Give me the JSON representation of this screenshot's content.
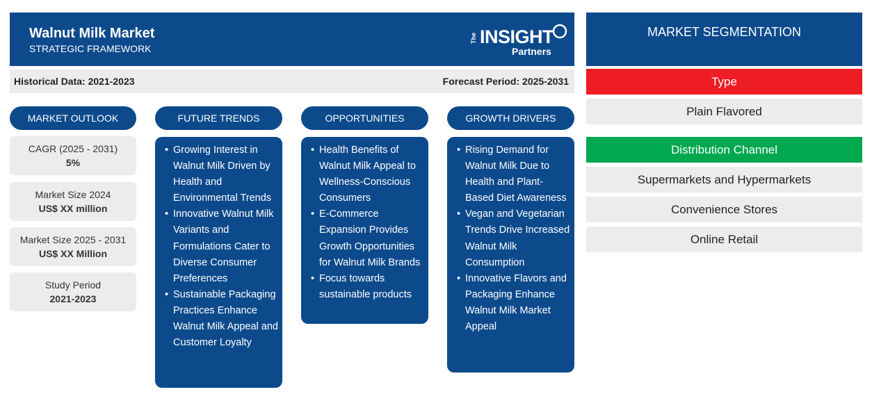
{
  "header": {
    "title": "Walnut Milk Market",
    "subtitle": "STRATEGIC FRAMEWORK",
    "logo": {
      "the": "The",
      "brand": "INSIGHT",
      "sub": "Partners"
    }
  },
  "periods": {
    "historical": "Historical Data: 2021-2023",
    "forecast": "Forecast Period: 2025-2031"
  },
  "market_outlook": {
    "heading": "MARKET OUTLOOK",
    "stats": [
      {
        "label": "CAGR (2025 - 2031)",
        "value": "5%"
      },
      {
        "label": "Market Size 2024",
        "value": "US$ XX million"
      },
      {
        "label": "Market Size 2025 - 2031",
        "value": "US$ XX Million"
      },
      {
        "label": "Study Period",
        "value": "2021-2023"
      }
    ]
  },
  "future_trends": {
    "heading": "FUTURE TRENDS",
    "items": [
      "Growing Interest in Walnut Milk Driven by Health and Environmental Trends",
      "Innovative Walnut Milk Variants and Formulations Cater to Diverse Consumer Preferences",
      "Sustainable Packaging Practices Enhance Walnut Milk Appeal and Customer Loyalty"
    ]
  },
  "opportunities": {
    "heading": "OPPORTUNITIES",
    "items": [
      "Health Benefits of Walnut Milk Appeal to Wellness-Conscious Consumers",
      "E-Commerce Expansion Provides Growth Opportunities for Walnut Milk Brands",
      "Focus towards sustainable products"
    ]
  },
  "growth_drivers": {
    "heading": "GROWTH DRIVERS",
    "items": [
      "Rising Demand for Walnut Milk Due to Health and Plant-Based Diet Awareness",
      "Vegan and Vegetarian Trends Drive Increased Walnut Milk Consumption",
      "Innovative Flavors and Packaging Enhance Walnut Milk Market Appeal"
    ]
  },
  "segmentation": {
    "heading": "MARKET SEGMENTATION",
    "type": {
      "label": "Type",
      "color": "#ee1c25",
      "items": [
        "Plain Flavored"
      ]
    },
    "distribution": {
      "label": "Distribution Channel",
      "color": "#00a84f",
      "items": [
        "Supermarkets and Hypermarkets",
        "Convenience Stores",
        "Online Retail"
      ]
    }
  },
  "colors": {
    "primary": "#0d4a8c",
    "panel": "#ececec"
  }
}
